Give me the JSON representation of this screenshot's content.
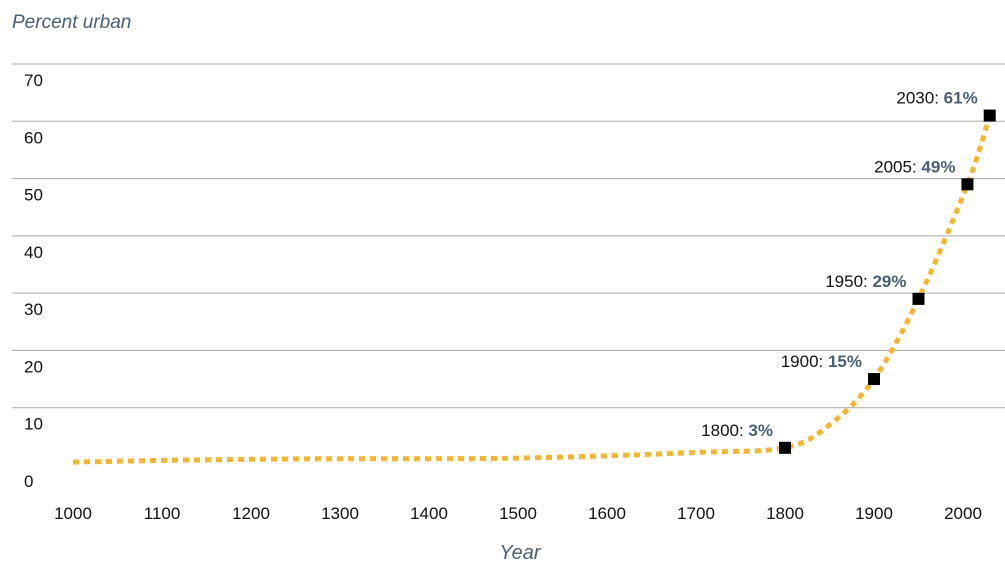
{
  "chart_data": {
    "type": "line",
    "ylabel": "Percent urban",
    "xlabel": "Year",
    "xlim": [
      1000,
      2030
    ],
    "ylim": [
      0,
      70
    ],
    "x_ticks": [
      "1000",
      "1100",
      "1200",
      "1300",
      "1400",
      "1500",
      "1600",
      "1700",
      "1800",
      "1900",
      "2000"
    ],
    "y_ticks": [
      "0",
      "10",
      "20",
      "30",
      "40",
      "50",
      "60",
      "70"
    ],
    "grid": "horizontal",
    "line_color": "#f2b632",
    "marker_color": "#000000",
    "value_color": "#4a5e7a",
    "series": [
      {
        "x": [
          1000,
          1100,
          1200,
          1300,
          1400,
          1500,
          1600,
          1700,
          1800,
          1850,
          1900,
          1950,
          2005,
          2030
        ],
        "y": [
          0.5,
          0.8,
          1.0,
          1.1,
          1.1,
          1.2,
          1.6,
          2.2,
          3,
          7,
          15,
          29,
          49,
          61
        ]
      }
    ],
    "annotations": [
      {
        "x": 1800,
        "y": 3,
        "year": "1800:",
        "value": "3%"
      },
      {
        "x": 1900,
        "y": 15,
        "year": "1900:",
        "value": "15%"
      },
      {
        "x": 1950,
        "y": 29,
        "year": "1950:",
        "value": "29%"
      },
      {
        "x": 2005,
        "y": 49,
        "year": "2005:",
        "value": "49%"
      },
      {
        "x": 2030,
        "y": 61,
        "year": "2030:",
        "value": "61%"
      }
    ]
  }
}
